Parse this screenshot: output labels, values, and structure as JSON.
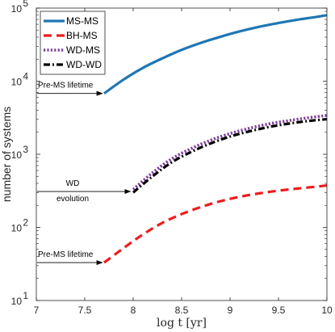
{
  "chart_data": {
    "type": "line",
    "xlabel": "log t [yr]",
    "ylabel": "number of systems",
    "xlim": [
      7,
      10
    ],
    "ylim": [
      10,
      100000
    ],
    "yscale": "log",
    "x_ticks": [
      "7",
      "7.5",
      "8",
      "8.5",
      "9",
      "9.5",
      "10"
    ],
    "y_ticks": [
      {
        "base": "10",
        "exp": "1"
      },
      {
        "base": "10",
        "exp": "2"
      },
      {
        "base": "10",
        "exp": "3"
      },
      {
        "base": "10",
        "exp": "4"
      },
      {
        "base": "10",
        "exp": "5"
      }
    ],
    "legend_position": "top-left",
    "series": [
      {
        "name": "MS-MS",
        "color": "#1f77b4",
        "style": "solid",
        "points": [
          [
            7.7,
            6800
          ],
          [
            7.9,
            10500
          ],
          [
            8.1,
            15200
          ],
          [
            8.3,
            20500
          ],
          [
            8.5,
            26800
          ],
          [
            8.7,
            33500
          ],
          [
            8.9,
            40500
          ],
          [
            9.1,
            48000
          ],
          [
            9.3,
            55500
          ],
          [
            9.5,
            62500
          ],
          [
            9.7,
            69500
          ],
          [
            9.9,
            76000
          ],
          [
            10.0,
            80000
          ]
        ]
      },
      {
        "name": "BH-MS",
        "color": "#ee1c1c",
        "style": "dashed",
        "points": [
          [
            7.7,
            33
          ],
          [
            7.9,
            52
          ],
          [
            8.1,
            80
          ],
          [
            8.3,
            115
          ],
          [
            8.5,
            152
          ],
          [
            8.7,
            190
          ],
          [
            8.9,
            228
          ],
          [
            9.1,
            262
          ],
          [
            9.3,
            292
          ],
          [
            9.5,
            318
          ],
          [
            9.7,
            340
          ],
          [
            9.9,
            362
          ],
          [
            10.0,
            375
          ]
        ]
      },
      {
        "name": "WD-MS",
        "color": "#7e3f98",
        "style": "dotted",
        "points": [
          [
            8.0,
            330
          ],
          [
            8.2,
            560
          ],
          [
            8.4,
            870
          ],
          [
            8.6,
            1200
          ],
          [
            8.8,
            1560
          ],
          [
            9.0,
            1920
          ],
          [
            9.2,
            2270
          ],
          [
            9.4,
            2600
          ],
          [
            9.6,
            2880
          ],
          [
            9.8,
            3150
          ],
          [
            10.0,
            3400
          ]
        ]
      },
      {
        "name": "WD-WD",
        "color": "#000000",
        "style": "dashdot",
        "points": [
          [
            8.0,
            300
          ],
          [
            8.2,
            500
          ],
          [
            8.4,
            780
          ],
          [
            8.6,
            1080
          ],
          [
            8.8,
            1410
          ],
          [
            9.0,
            1750
          ],
          [
            9.2,
            2060
          ],
          [
            9.4,
            2360
          ],
          [
            9.6,
            2620
          ],
          [
            9.8,
            2850
          ],
          [
            10.0,
            3020
          ]
        ]
      }
    ],
    "annotations": [
      {
        "lines": [
          "Pre-MS lifetime"
        ],
        "start": [
          7.0,
          6800
        ],
        "end": [
          7.68,
          6800
        ]
      },
      {
        "lines": [
          "WD",
          "evolution"
        ],
        "start": [
          7.0,
          310
        ],
        "end": [
          7.97,
          310
        ]
      },
      {
        "lines": [
          "Pre-MS lifetime"
        ],
        "start": [
          7.0,
          33
        ],
        "end": [
          7.68,
          33
        ]
      }
    ]
  }
}
